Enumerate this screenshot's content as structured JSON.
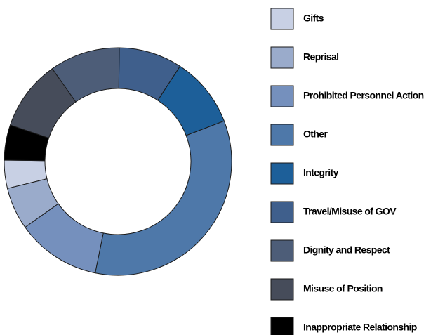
{
  "chart_data": {
    "type": "pie",
    "categories": [
      "Gifts",
      "Reprisal",
      "Prohibited Personnel Action",
      "Other",
      "Integrity",
      "Travel/Misuse of GOV",
      "Dignity and Respect",
      "Misuse of Position",
      "Inappropriate Relationship"
    ],
    "values": [
      4,
      6,
      12,
      34,
      10,
      9,
      10,
      10,
      5
    ],
    "colors": [
      "#c8d0e4",
      "#9aabcb",
      "#7590bd",
      "#4e78a9",
      "#1d5f99",
      "#3f5f8c",
      "#4d5d78",
      "#464c5a",
      "#000000"
    ]
  }
}
